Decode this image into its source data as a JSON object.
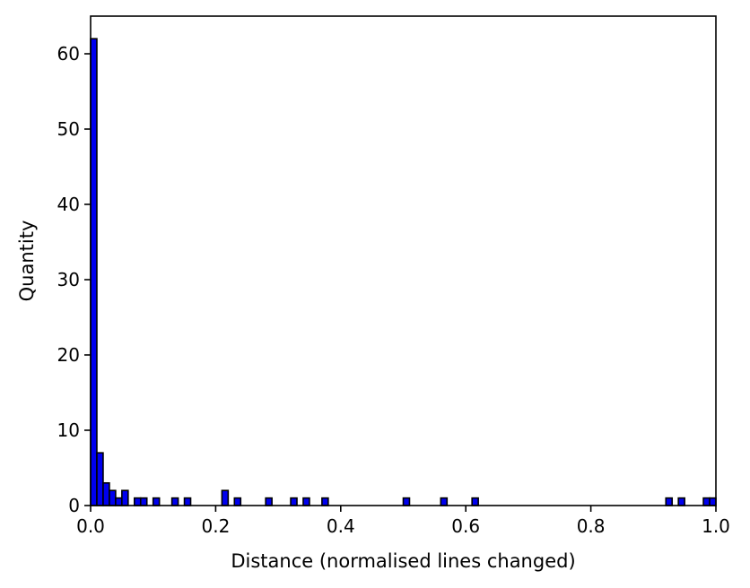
{
  "chart_data": {
    "type": "bar",
    "title": "",
    "xlabel": "Distance (normalised lines changed)",
    "ylabel": "Quantity",
    "xlim": [
      0.0,
      1.0
    ],
    "ylim": [
      0,
      65
    ],
    "bin_width": 0.01,
    "x_ticks": [
      0.0,
      0.2,
      0.4,
      0.6,
      0.8,
      1.0
    ],
    "x_tick_labels": [
      "0.0",
      "0.2",
      "0.4",
      "0.6",
      "0.8",
      "1.0"
    ],
    "y_ticks": [
      0,
      10,
      20,
      30,
      40,
      50,
      60
    ],
    "y_tick_labels": [
      "0",
      "10",
      "20",
      "30",
      "40",
      "50",
      "60"
    ],
    "grid": false,
    "bar_color": "#0000ee",
    "edge_color": "#000000",
    "bins": [
      {
        "x0": 0.0,
        "value": 62
      },
      {
        "x0": 0.01,
        "value": 7
      },
      {
        "x0": 0.02,
        "value": 3
      },
      {
        "x0": 0.03,
        "value": 2
      },
      {
        "x0": 0.04,
        "value": 1
      },
      {
        "x0": 0.05,
        "value": 2
      },
      {
        "x0": 0.07,
        "value": 1
      },
      {
        "x0": 0.08,
        "value": 1
      },
      {
        "x0": 0.1,
        "value": 1
      },
      {
        "x0": 0.13,
        "value": 1
      },
      {
        "x0": 0.15,
        "value": 1
      },
      {
        "x0": 0.21,
        "value": 2
      },
      {
        "x0": 0.23,
        "value": 1
      },
      {
        "x0": 0.28,
        "value": 1
      },
      {
        "x0": 0.32,
        "value": 1
      },
      {
        "x0": 0.34,
        "value": 1
      },
      {
        "x0": 0.37,
        "value": 1
      },
      {
        "x0": 0.5,
        "value": 1
      },
      {
        "x0": 0.56,
        "value": 1
      },
      {
        "x0": 0.61,
        "value": 1
      },
      {
        "x0": 0.92,
        "value": 1
      },
      {
        "x0": 0.94,
        "value": 1
      },
      {
        "x0": 0.98,
        "value": 1
      },
      {
        "x0": 0.99,
        "value": 1
      }
    ]
  }
}
